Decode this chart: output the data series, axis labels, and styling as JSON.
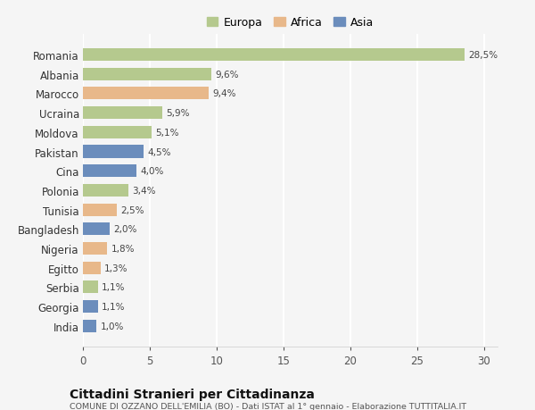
{
  "countries": [
    "Romania",
    "Albania",
    "Marocco",
    "Ucraina",
    "Moldova",
    "Pakistan",
    "Cina",
    "Polonia",
    "Tunisia",
    "Bangladesh",
    "Nigeria",
    "Egitto",
    "Serbia",
    "Georgia",
    "India"
  ],
  "values": [
    28.5,
    9.6,
    9.4,
    5.9,
    5.1,
    4.5,
    4.0,
    3.4,
    2.5,
    2.0,
    1.8,
    1.3,
    1.1,
    1.1,
    1.0
  ],
  "labels": [
    "28,5%",
    "9,6%",
    "9,4%",
    "5,9%",
    "5,1%",
    "4,5%",
    "4,0%",
    "3,4%",
    "2,5%",
    "2,0%",
    "1,8%",
    "1,3%",
    "1,1%",
    "1,1%",
    "1,0%"
  ],
  "continents": [
    "Europa",
    "Europa",
    "Africa",
    "Europa",
    "Europa",
    "Asia",
    "Asia",
    "Europa",
    "Africa",
    "Asia",
    "Africa",
    "Africa",
    "Europa",
    "Asia",
    "Asia"
  ],
  "color_europa": "#b5c98e",
  "color_africa": "#e8b88a",
  "color_asia": "#6b8dbc",
  "bg_color": "#f5f5f5",
  "xlim": [
    0,
    31
  ],
  "xticks": [
    0,
    5,
    10,
    15,
    20,
    25,
    30
  ],
  "title": "Cittadini Stranieri per Cittadinanza",
  "subtitle": "COMUNE DI OZZANO DELL'EMILIA (BO) - Dati ISTAT al 1° gennaio - Elaborazione TUTTITALIA.IT",
  "legend_labels": [
    "Europa",
    "Africa",
    "Asia"
  ],
  "legend_colors": [
    "#b5c98e",
    "#e8b88a",
    "#6b8dbc"
  ]
}
